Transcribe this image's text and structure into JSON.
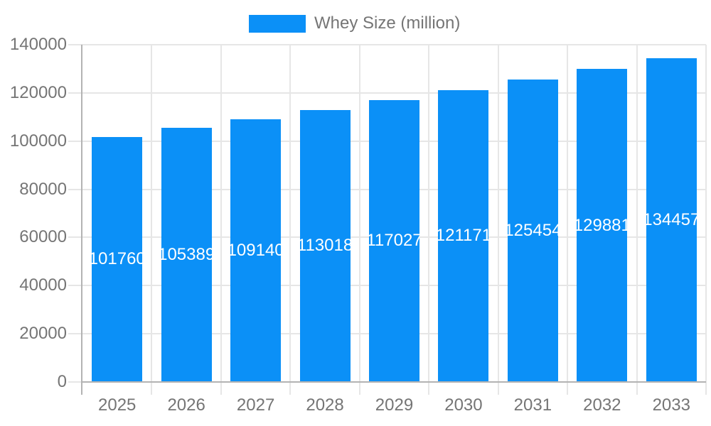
{
  "chart_data": {
    "type": "bar",
    "title": "",
    "legend": {
      "label": "Whey Size (million)",
      "position": "top-center"
    },
    "categories": [
      "2025",
      "2026",
      "2027",
      "2028",
      "2029",
      "2030",
      "2031",
      "2032",
      "2033"
    ],
    "series": [
      {
        "name": "Whey Size (million)",
        "color": "#0b90f7",
        "values": [
          101760,
          105389,
          109140,
          113018,
          117027,
          121171,
          125454,
          129881,
          134457
        ],
        "value_labels_text": [
          "101760",
          "105389",
          "109140",
          "113018",
          "117027",
          "121171",
          "125454",
          "129881",
          "134457"
        ]
      }
    ],
    "ylim": [
      0,
      140000
    ],
    "ytick_step": 20000,
    "yticks": [
      0,
      20000,
      40000,
      60000,
      80000,
      100000,
      120000,
      140000
    ],
    "ytick_labels": [
      "0",
      "20000",
      "40000",
      "60000",
      "80000",
      "100000",
      "120000",
      "140000"
    ],
    "grid": true,
    "value_labels": {
      "position": "inside-center",
      "color": "#ffffff"
    }
  },
  "colors": {
    "bar": "#0b90f7",
    "grid": "#e6e6e6",
    "axis": "#b3b3b3",
    "axis_text": "#757575",
    "value_text": "#ffffff",
    "background": "#ffffff"
  }
}
